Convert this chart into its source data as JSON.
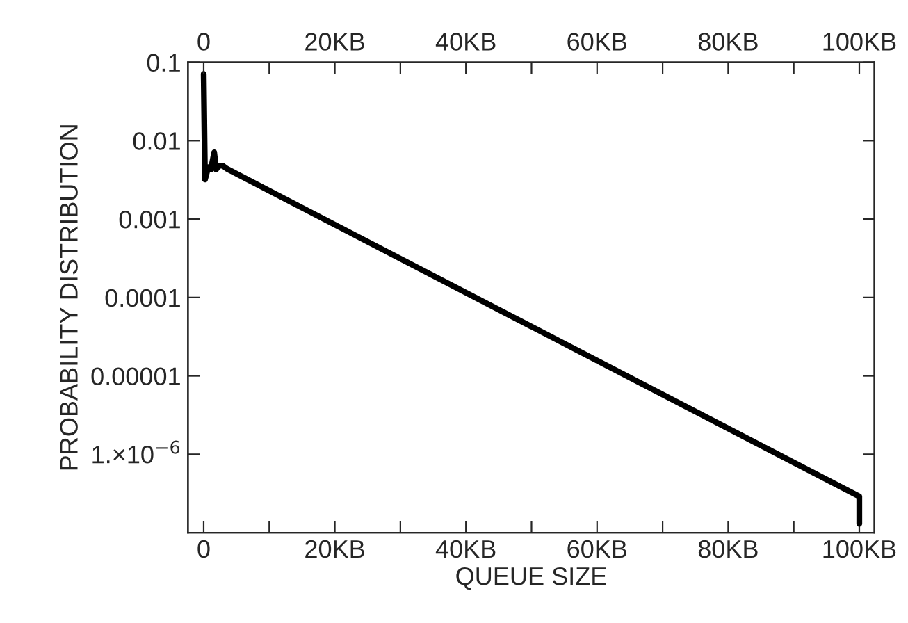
{
  "chart_data": {
    "type": "line",
    "xlabel": "QUEUE SIZE",
    "ylabel": "PROBABILITY DISTRIBUTION",
    "log": "y",
    "xlim": [
      -2.4,
      102.3
    ],
    "ylim": [
      1e-07,
      0.1
    ],
    "xticks": [
      {
        "value": 0,
        "label": "0"
      },
      {
        "value": 10,
        "label": null
      },
      {
        "value": 20,
        "label": "20KB"
      },
      {
        "value": 30,
        "label": null
      },
      {
        "value": 40,
        "label": "40KB"
      },
      {
        "value": 50,
        "label": null
      },
      {
        "value": 60,
        "label": "60KB"
      },
      {
        "value": 70,
        "label": null
      },
      {
        "value": 80,
        "label": "80KB"
      },
      {
        "value": 90,
        "label": null
      },
      {
        "value": 100,
        "label": "100KB"
      }
    ],
    "x2lim": [
      -2.4,
      102.3
    ],
    "x2ticks": [
      {
        "value": 0,
        "label": "0"
      },
      {
        "value": 10,
        "label": null
      },
      {
        "value": 20,
        "label": "20KB"
      },
      {
        "value": 30,
        "label": null
      },
      {
        "value": 40,
        "label": "40KB"
      },
      {
        "value": 50,
        "label": null
      },
      {
        "value": 60,
        "label": "60KB"
      },
      {
        "value": 70,
        "label": null
      },
      {
        "value": 80,
        "label": "80KB"
      },
      {
        "value": 90,
        "label": null
      },
      {
        "value": 100,
        "label": "100KB"
      }
    ],
    "yticks": [
      {
        "value": 0.1,
        "label": "0.1"
      },
      {
        "value": 0.01,
        "label": "0.01"
      },
      {
        "value": 0.001,
        "label": "0.001"
      },
      {
        "value": 0.0001,
        "label": "0.0001"
      },
      {
        "value": 1e-05,
        "label": "0.00001"
      },
      {
        "value": 1e-06,
        "label": "1.×10$^{−6}$"
      }
    ],
    "grid": false,
    "legend": false,
    "series": [
      {
        "color": "#000000",
        "x": [
          0,
          0.2,
          0.7,
          1.1,
          1.6,
          1.9,
          2.3,
          2.9,
          3.5,
          100,
          100
        ],
        "values": [
          0.071,
          0.0032,
          0.0046,
          0.0043,
          0.0071,
          0.0043,
          0.0048,
          0.0048,
          0.0044,
          2.9e-07,
          1.3e-07
        ]
      }
    ]
  }
}
